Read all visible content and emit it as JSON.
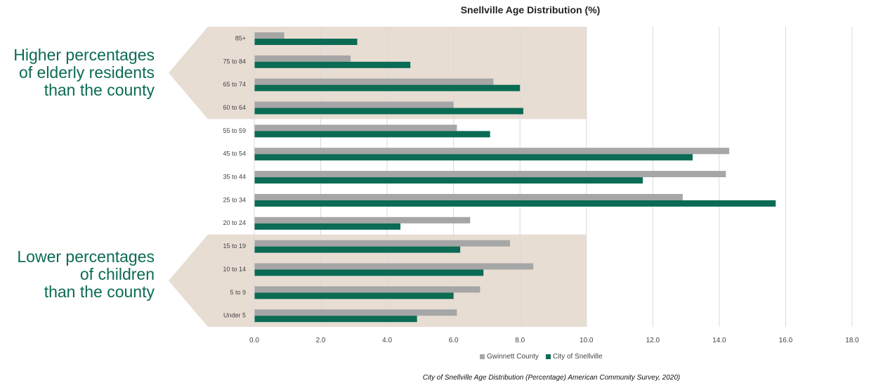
{
  "chart_data": {
    "type": "bar",
    "orientation": "horizontal",
    "title": "Snellville Age Distribution (%)",
    "caption": "City of Snellville Age Distribution (Percentage) American Community Survey, 2020)",
    "categories": [
      "85+",
      "75 to 84",
      "65 to 74",
      "60 to 64",
      "55 to 59",
      "45 to 54",
      "35 to 44",
      "25 to 34",
      "20 to 24",
      "15 to 19",
      "10 to 14",
      "5 to 9",
      "Under 5"
    ],
    "series": [
      {
        "name": "Gwinnett County",
        "color": "#a6a6a6",
        "values": [
          0.9,
          2.9,
          7.2,
          6.0,
          6.1,
          14.3,
          14.2,
          12.9,
          6.5,
          7.7,
          8.4,
          6.8,
          6.1
        ]
      },
      {
        "name": "City of Snellville",
        "color": "#0b6b55",
        "values": [
          3.1,
          4.7,
          8.0,
          8.1,
          7.1,
          13.2,
          11.7,
          15.7,
          4.4,
          6.2,
          6.9,
          6.0,
          4.9
        ]
      }
    ],
    "xlim": [
      0,
      18
    ],
    "xticks": [
      "0.0",
      "2.0",
      "4.0",
      "6.0",
      "8.0",
      "10.0",
      "12.0",
      "14.0",
      "16.0",
      "18.0"
    ],
    "grid": "vertical",
    "legend_position": "bottom",
    "highlight_color": "#e8ddd3",
    "highlights": [
      {
        "categories": [
          "85+",
          "75 to 84",
          "65 to 74",
          "60 to 64"
        ],
        "xmax": 10,
        "lines": [
          "Higher percentages",
          "of elderly residents",
          "than the county"
        ]
      },
      {
        "categories": [
          "15 to 19",
          "10 to 14",
          "5 to 9",
          "Under 5"
        ],
        "xmax": 10,
        "lines": [
          "Lower percentages",
          "of children",
          "than the county"
        ]
      }
    ]
  }
}
